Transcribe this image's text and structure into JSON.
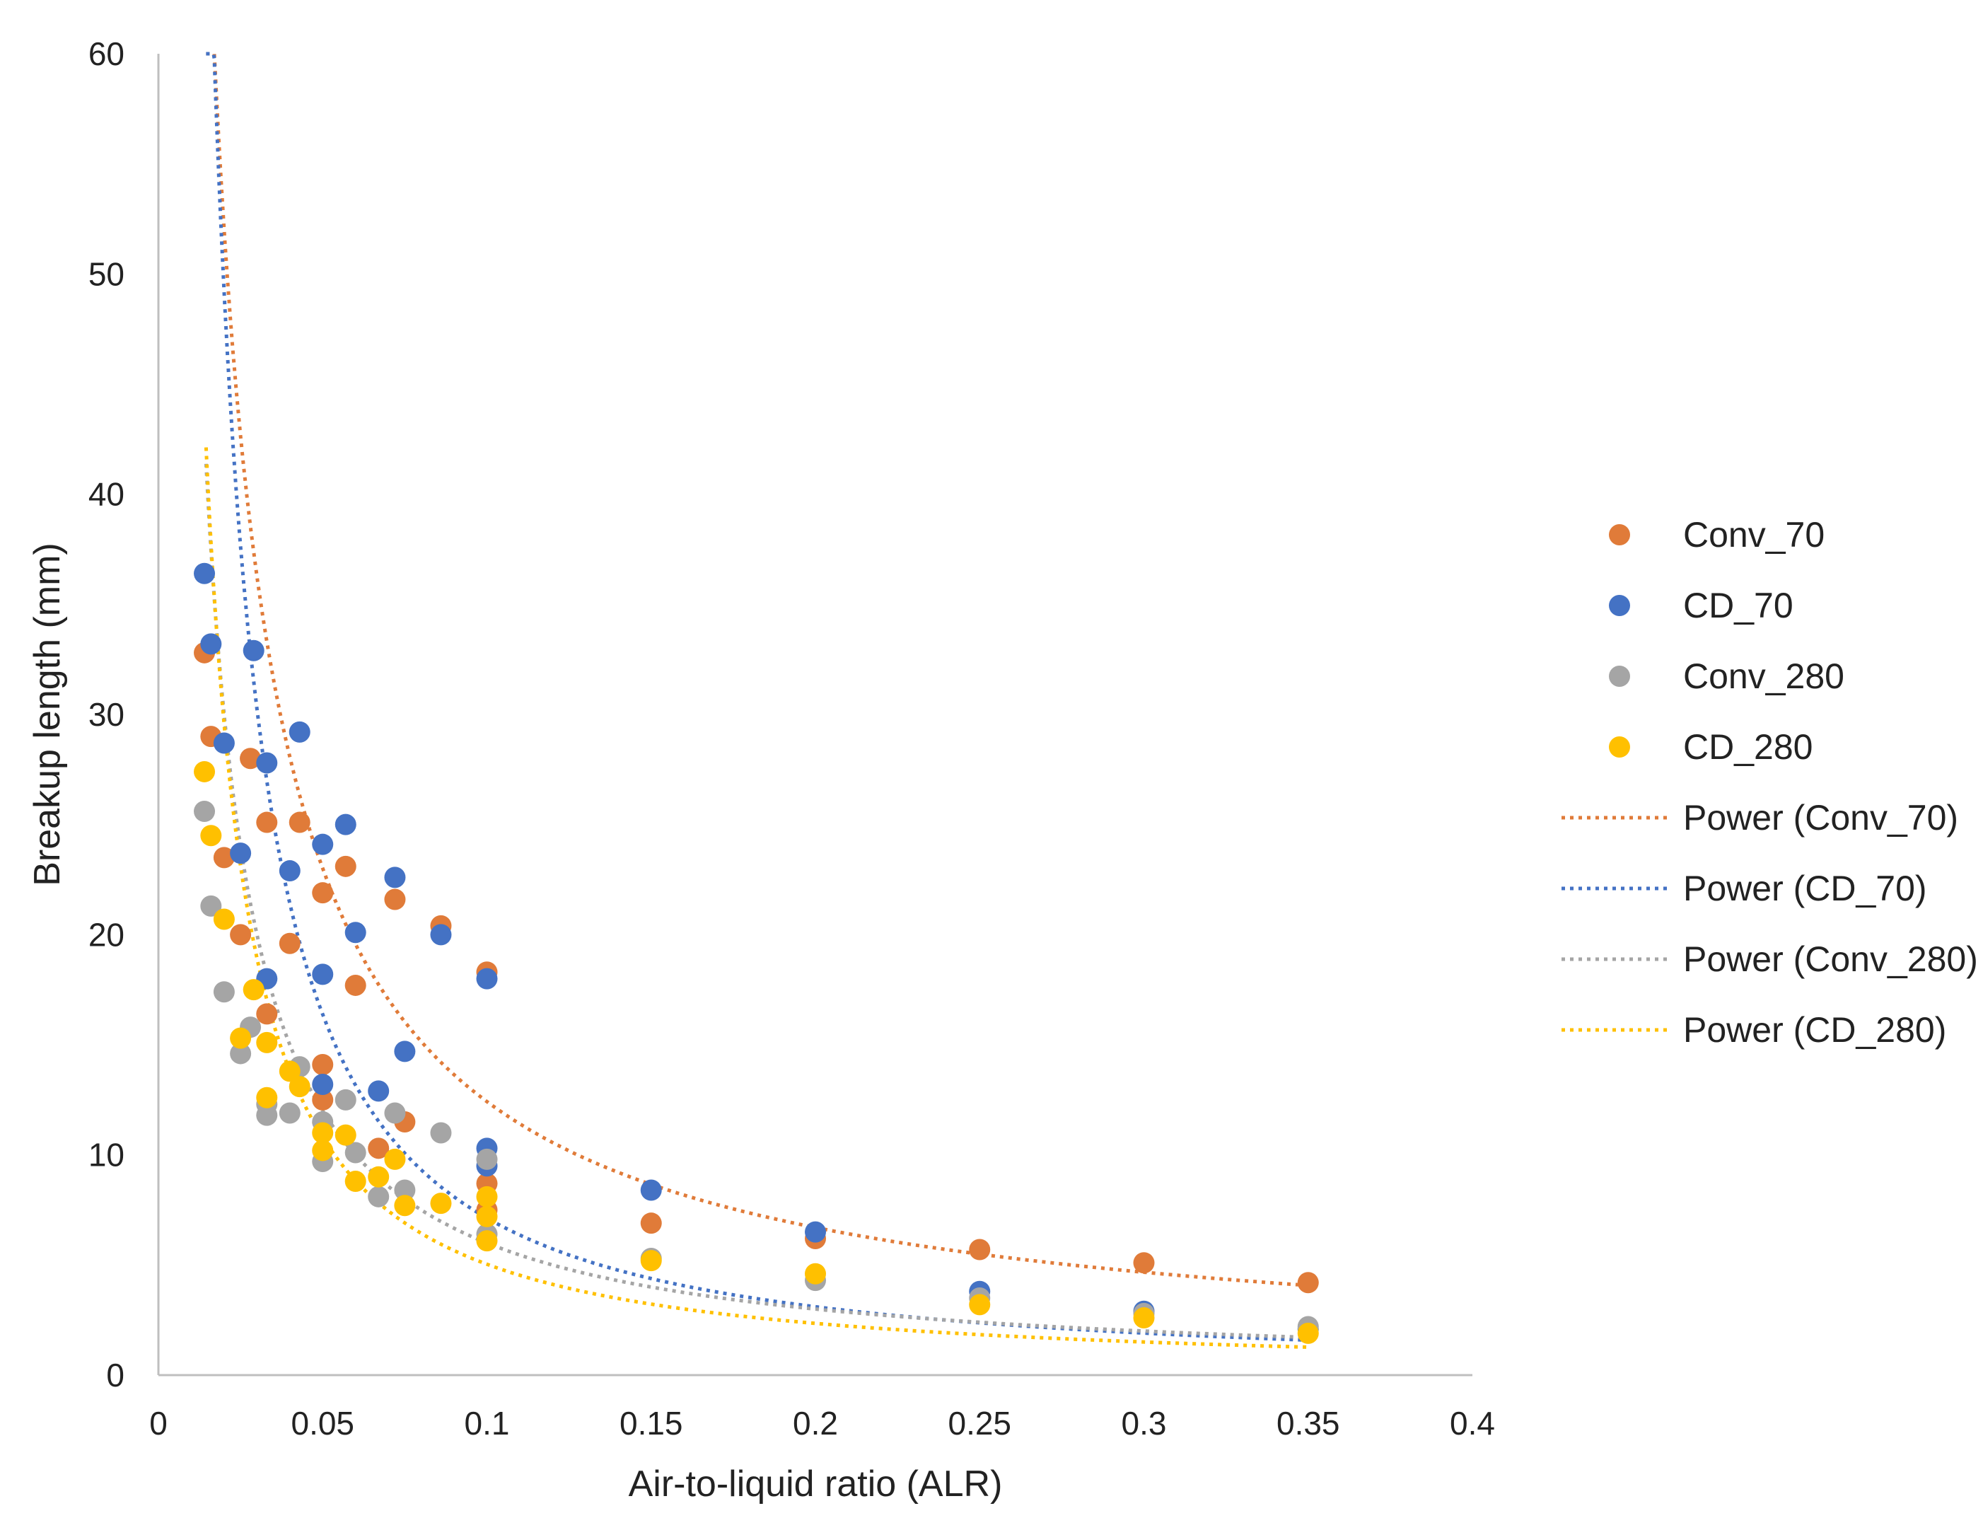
{
  "chart_data": {
    "type": "scatter",
    "title": "",
    "xlabel": "Air-to-liquid ratio (ALR)",
    "ylabel": "Breakup length (mm)",
    "xlim": [
      0,
      0.4
    ],
    "ylim": [
      0,
      60
    ],
    "x_ticks": [
      "0",
      "0.05",
      "0.1",
      "0.15",
      "0.2",
      "0.25",
      "0.3",
      "0.35",
      "0.4"
    ],
    "y_ticks": [
      "0",
      "10",
      "20",
      "30",
      "40",
      "50",
      "60"
    ],
    "grid": false,
    "legend_position": "right",
    "series": [
      {
        "name": "Conv_70",
        "color": "#E07B39",
        "points": [
          [
            0.014,
            32.8
          ],
          [
            0.016,
            29.0
          ],
          [
            0.02,
            23.5
          ],
          [
            0.025,
            20.0
          ],
          [
            0.028,
            28.0
          ],
          [
            0.033,
            25.1
          ],
          [
            0.033,
            16.4
          ],
          [
            0.04,
            19.6
          ],
          [
            0.043,
            25.1
          ],
          [
            0.05,
            21.9
          ],
          [
            0.05,
            14.1
          ],
          [
            0.05,
            12.5
          ],
          [
            0.057,
            23.1
          ],
          [
            0.06,
            17.7
          ],
          [
            0.067,
            10.3
          ],
          [
            0.072,
            21.6
          ],
          [
            0.075,
            11.5
          ],
          [
            0.086,
            20.4
          ],
          [
            0.1,
            18.3
          ],
          [
            0.1,
            8.7
          ],
          [
            0.1,
            7.5
          ],
          [
            0.15,
            6.9
          ],
          [
            0.2,
            6.2
          ],
          [
            0.25,
            5.7
          ],
          [
            0.3,
            5.1
          ],
          [
            0.35,
            4.2
          ]
        ]
      },
      {
        "name": "CD_70",
        "color": "#4472C4",
        "points": [
          [
            0.014,
            36.4
          ],
          [
            0.016,
            33.2
          ],
          [
            0.02,
            28.7
          ],
          [
            0.025,
            23.7
          ],
          [
            0.029,
            32.9
          ],
          [
            0.033,
            27.8
          ],
          [
            0.033,
            18.0
          ],
          [
            0.04,
            22.9
          ],
          [
            0.043,
            29.2
          ],
          [
            0.05,
            24.1
          ],
          [
            0.05,
            18.2
          ],
          [
            0.05,
            13.2
          ],
          [
            0.057,
            25.0
          ],
          [
            0.06,
            20.1
          ],
          [
            0.067,
            12.9
          ],
          [
            0.072,
            22.6
          ],
          [
            0.075,
            14.7
          ],
          [
            0.086,
            20.0
          ],
          [
            0.1,
            18.0
          ],
          [
            0.1,
            10.3
          ],
          [
            0.1,
            9.5
          ],
          [
            0.15,
            8.4
          ],
          [
            0.2,
            6.5
          ],
          [
            0.25,
            3.8
          ],
          [
            0.3,
            2.9
          ],
          [
            0.35,
            2.1
          ]
        ]
      },
      {
        "name": "Conv_280",
        "color": "#A5A5A5",
        "points": [
          [
            0.014,
            25.6
          ],
          [
            0.016,
            21.3
          ],
          [
            0.02,
            17.4
          ],
          [
            0.025,
            14.6
          ],
          [
            0.028,
            15.8
          ],
          [
            0.033,
            11.8
          ],
          [
            0.033,
            12.3
          ],
          [
            0.04,
            11.9
          ],
          [
            0.043,
            14.0
          ],
          [
            0.05,
            9.7
          ],
          [
            0.05,
            11.5
          ],
          [
            0.057,
            12.5
          ],
          [
            0.06,
            10.1
          ],
          [
            0.067,
            8.1
          ],
          [
            0.072,
            11.9
          ],
          [
            0.075,
            8.4
          ],
          [
            0.086,
            11.0
          ],
          [
            0.1,
            9.8
          ],
          [
            0.1,
            6.4
          ],
          [
            0.15,
            5.3
          ],
          [
            0.2,
            4.3
          ],
          [
            0.25,
            3.5
          ],
          [
            0.3,
            2.8
          ],
          [
            0.35,
            2.2
          ]
        ]
      },
      {
        "name": "CD_280",
        "color": "#FFC000",
        "points": [
          [
            0.014,
            27.4
          ],
          [
            0.016,
            24.5
          ],
          [
            0.02,
            20.7
          ],
          [
            0.025,
            15.3
          ],
          [
            0.029,
            17.5
          ],
          [
            0.033,
            15.1
          ],
          [
            0.033,
            12.6
          ],
          [
            0.04,
            13.8
          ],
          [
            0.043,
            13.1
          ],
          [
            0.05,
            11.0
          ],
          [
            0.05,
            10.2
          ],
          [
            0.057,
            10.9
          ],
          [
            0.06,
            8.8
          ],
          [
            0.067,
            9.0
          ],
          [
            0.072,
            9.8
          ],
          [
            0.075,
            7.7
          ],
          [
            0.086,
            7.8
          ],
          [
            0.1,
            8.1
          ],
          [
            0.1,
            7.2
          ],
          [
            0.1,
            6.1
          ],
          [
            0.15,
            5.2
          ],
          [
            0.2,
            4.6
          ],
          [
            0.25,
            3.2
          ],
          [
            0.3,
            2.6
          ],
          [
            0.35,
            1.9
          ]
        ]
      }
    ],
    "trendlines": [
      {
        "name": "Power (Conv_70)",
        "color": "#E07B39",
        "fit": "power",
        "coef": 1.6,
        "exponent": -0.89
      },
      {
        "name": "Power (CD_70)",
        "color": "#4472C4",
        "fit": "power",
        "coef": 0.45,
        "exponent": -1.2
      },
      {
        "name": "Power (Conv_280)",
        "color": "#A5A5A5",
        "fit": "power",
        "coef": 0.6,
        "exponent": -1.0
      },
      {
        "name": "Power (CD_280)",
        "color": "#FFC000",
        "fit": "power",
        "coef": 0.4,
        "exponent": -1.1
      }
    ]
  }
}
